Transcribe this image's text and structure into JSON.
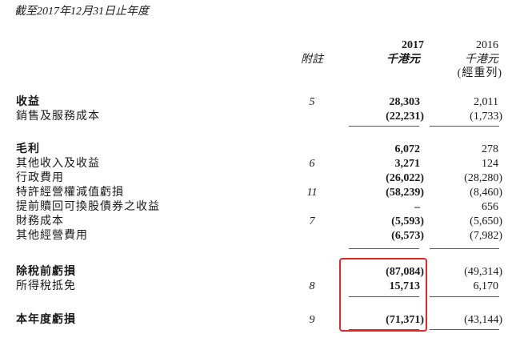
{
  "title": "截至2017年12月31日止年度",
  "header": {
    "note_label": "附註",
    "col2017": {
      "year": "2017",
      "unit": "千港元"
    },
    "col2016": {
      "year": "2016",
      "unit": "千港元",
      "remark": "(經重列)"
    }
  },
  "rows": [
    {
      "label": "收益",
      "bold": true,
      "note": "5",
      "v2017": "28,303",
      "v2016": "2,011"
    },
    {
      "label": "銷售及服務成本",
      "bold": false,
      "note": "",
      "v2017": "(22,231)",
      "v2016": "(1,733)"
    },
    {
      "label": "毛利",
      "bold": true,
      "note": "",
      "v2017": "6,072",
      "v2016": "278"
    },
    {
      "label": "其他收入及收益",
      "bold": false,
      "note": "6",
      "v2017": "3,271",
      "v2016": "124"
    },
    {
      "label": "行政費用",
      "bold": false,
      "note": "",
      "v2017": "(26,022)",
      "v2016": "(28,280)"
    },
    {
      "label": "特許經營權減值虧損",
      "bold": false,
      "note": "11",
      "v2017": "(58,239)",
      "v2016": "(8,460)"
    },
    {
      "label": "提前贖回可換股債券之收益",
      "bold": false,
      "note": "",
      "v2017": "–",
      "v2016": "656"
    },
    {
      "label": "財務成本",
      "bold": false,
      "note": "7",
      "v2017": "(5,593)",
      "v2016": "(5,650)"
    },
    {
      "label": "其他經營費用",
      "bold": false,
      "note": "",
      "v2017": "(6,573)",
      "v2016": "(7,982)"
    },
    {
      "label": "除稅前虧損",
      "bold": true,
      "note": "",
      "v2017": "(87,084)",
      "v2016": "(49,314)"
    },
    {
      "label": "所得稅抵免",
      "bold": false,
      "note": "8",
      "v2017": "15,713",
      "v2016": "6,170"
    },
    {
      "label": "本年度虧損",
      "bold": true,
      "note": "9",
      "v2017": "(71,371)",
      "v2016": "(43,144)"
    }
  ],
  "highlight_color": "#e8262a"
}
